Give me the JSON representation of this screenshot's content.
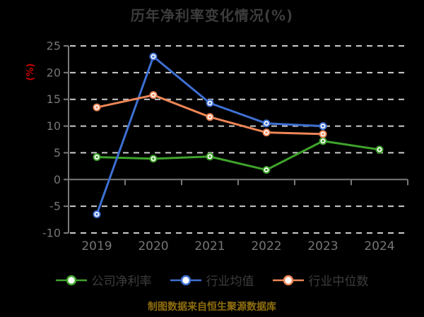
{
  "title": "历年净利率变化情况(%)",
  "footer": "制图数据来自恒生聚源数据库",
  "colors": {
    "background": "#000000",
    "title_text": "#3c3c3c",
    "axis_line": "#7a7a7a",
    "grid_line": "#cbcbcb",
    "tick_label": "#757575",
    "y_axis_name": "#c00000",
    "legend_text": "#3d3d3d",
    "footer_text": "#8e6d0e",
    "marker_fill": "#ffffff",
    "series_green": "#3fa32c",
    "series_blue": "#3e70d3",
    "series_orange": "#ee8657"
  },
  "chart_data": {
    "type": "line",
    "title": "历年净利率变化情况(%)",
    "categories": [
      "2019",
      "2020",
      "2021",
      "2022",
      "2023",
      "2024"
    ],
    "series": [
      {
        "name": "公司净利率",
        "color": "#3fa32c",
        "values": [
          4.2,
          3.9,
          4.3,
          1.8,
          7.2,
          5.6
        ]
      },
      {
        "name": "行业均值",
        "color": "#3e70d3",
        "values": [
          -6.5,
          23.0,
          14.3,
          10.5,
          10.0,
          null
        ]
      },
      {
        "name": "行业中位数",
        "color": "#ee8657",
        "values": [
          13.5,
          15.8,
          11.7,
          8.8,
          8.5,
          null
        ]
      }
    ],
    "xlabel": "",
    "ylabel": "(%)",
    "ylim": [
      -10,
      25
    ],
    "yticks": [
      25,
      20,
      15,
      10,
      5,
      0,
      -5,
      -10
    ],
    "grid": true,
    "grid_style": "dashed",
    "legend_position": "bottom",
    "marker": "circle-white-fill"
  }
}
